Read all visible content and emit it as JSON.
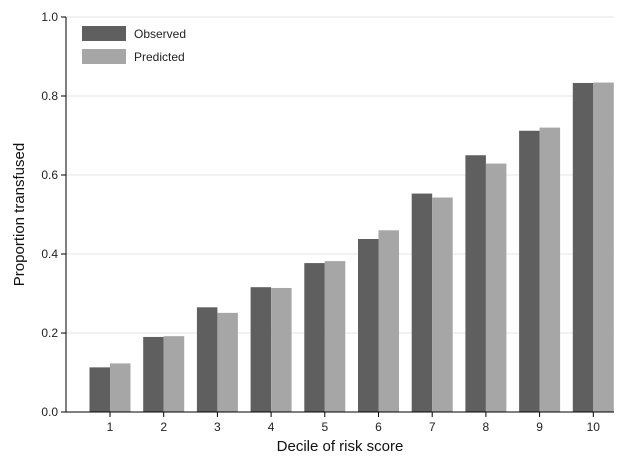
{
  "chart_data": {
    "type": "bar",
    "categories": [
      "1",
      "2",
      "3",
      "4",
      "5",
      "6",
      "7",
      "8",
      "9",
      "10"
    ],
    "series": [
      {
        "name": "Observed",
        "color": "#5f5f5f",
        "values": [
          0.113,
          0.19,
          0.265,
          0.316,
          0.377,
          0.438,
          0.553,
          0.65,
          0.712,
          0.833
        ]
      },
      {
        "name": "Predicted",
        "color": "#a6a6a6",
        "values": [
          0.123,
          0.192,
          0.251,
          0.314,
          0.382,
          0.46,
          0.543,
          0.629,
          0.72,
          0.834
        ]
      }
    ],
    "xlabel": "Decile of risk score",
    "ylabel": "Proportion transfused",
    "ylim": [
      0,
      1.0
    ],
    "yticks": [
      "0.0",
      "0.2",
      "0.4",
      "0.6",
      "0.8",
      "1.0"
    ],
    "grid": true,
    "legend_position": "top-left"
  }
}
